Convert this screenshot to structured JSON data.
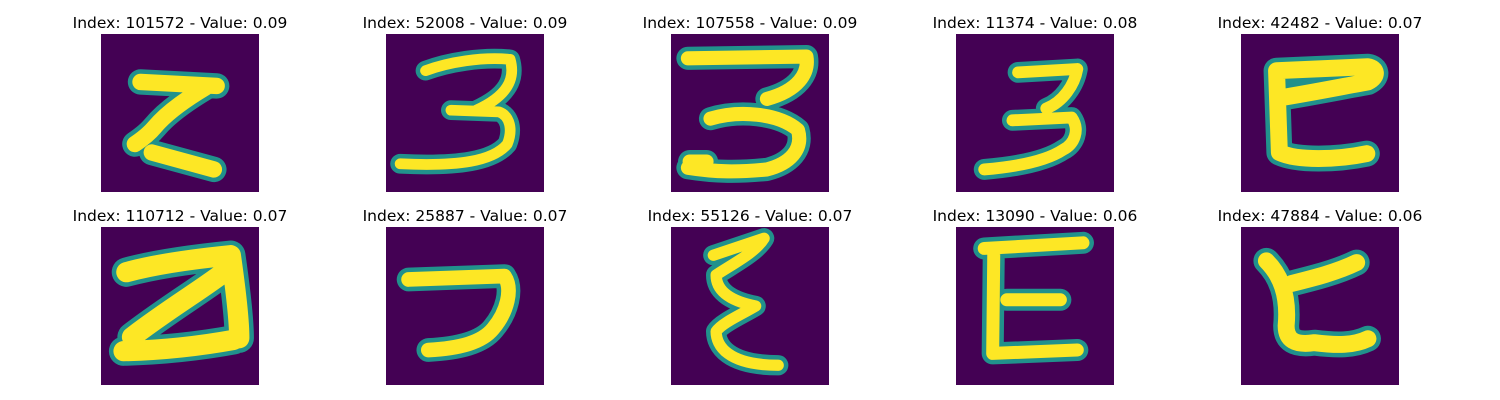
{
  "colors": {
    "background": "#440154",
    "stroke": "#fde725",
    "edge": "#21918c",
    "text": "#000000"
  },
  "images": [
    {
      "title": "Index: 101572 - Value: 0.09",
      "glyph": "5"
    },
    {
      "title": "Index: 52008 - Value: 0.09",
      "glyph": "3"
    },
    {
      "title": "Index: 107558 - Value: 0.09",
      "glyph": "3"
    },
    {
      "title": "Index: 11374 - Value: 0.08",
      "glyph": "3"
    },
    {
      "title": "Index: 42482 - Value: 0.07",
      "glyph": "c"
    },
    {
      "title": "Index: 110712 - Value: 0.07",
      "glyph": "2"
    },
    {
      "title": "Index: 25887 - Value: 0.07",
      "glyph": "7"
    },
    {
      "title": "Index: 55126 - Value: 0.07",
      "glyph": "e"
    },
    {
      "title": "Index: 13090 - Value: 0.06",
      "glyph": "E"
    },
    {
      "title": "Index: 47884 - Value: 0.06",
      "glyph": "c"
    }
  ]
}
